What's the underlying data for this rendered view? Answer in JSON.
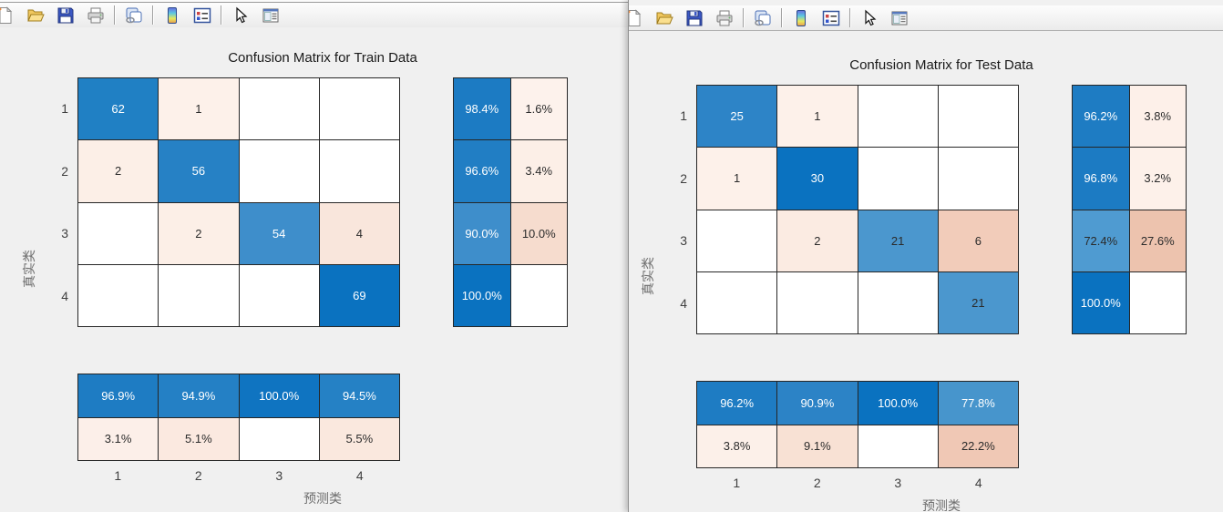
{
  "toolbar": {
    "icons": [
      {
        "name": "new-figure-icon"
      },
      {
        "name": "open-file-icon"
      },
      {
        "name": "save-figure-icon"
      },
      {
        "name": "print-figure-icon"
      },
      {
        "name": "link-plot-icon"
      },
      {
        "name": "insert-colorbar-icon"
      },
      {
        "name": "insert-legend-icon"
      },
      {
        "name": "edit-plot-arrow-icon"
      },
      {
        "name": "property-inspector-icon"
      }
    ]
  },
  "windows": [
    {
      "title": "Confusion Matrix for Train Data",
      "xlabel": "预测类",
      "ylabel": "真实类",
      "row_ticks": [
        "1",
        "2",
        "3",
        "4"
      ],
      "col_ticks": [
        "1",
        "2",
        "3",
        "4"
      ],
      "matrix": [
        [
          {
            "t": "62",
            "bg": "#2080c4",
            "fg": "#ffffff"
          },
          {
            "t": "1",
            "bg": "#fdf1ea"
          },
          {
            "t": "",
            "bg": "#ffffff"
          },
          {
            "t": "",
            "bg": "#ffffff"
          }
        ],
        [
          {
            "t": "2",
            "bg": "#fcefe7"
          },
          {
            "t": "56",
            "bg": "#2681c5",
            "fg": "#ffffff"
          },
          {
            "t": "",
            "bg": "#ffffff"
          },
          {
            "t": "",
            "bg": "#ffffff"
          }
        ],
        [
          {
            "t": "",
            "bg": "#ffffff"
          },
          {
            "t": "2",
            "bg": "#fcefe7"
          },
          {
            "t": "54",
            "bg": "#3e8ecb",
            "fg": "#ffffff"
          },
          {
            "t": "4",
            "bg": "#f9e6dc"
          }
        ],
        [
          {
            "t": "",
            "bg": "#ffffff"
          },
          {
            "t": "",
            "bg": "#ffffff"
          },
          {
            "t": "",
            "bg": "#ffffff"
          },
          {
            "t": "69",
            "bg": "#0a72c0",
            "fg": "#ffffff"
          }
        ]
      ],
      "row_summary": [
        [
          {
            "t": "98.4%",
            "bg": "#1c7bc3",
            "fg": "#ffffff"
          },
          {
            "t": "1.6%",
            "bg": "#fdf2ec"
          }
        ],
        [
          {
            "t": "96.6%",
            "bg": "#217ec4",
            "fg": "#ffffff"
          },
          {
            "t": "3.4%",
            "bg": "#fcefe7"
          }
        ],
        [
          {
            "t": "90.0%",
            "bg": "#3e8ecb",
            "fg": "#ffffff"
          },
          {
            "t": "10.0%",
            "bg": "#f6dcce"
          }
        ],
        [
          {
            "t": "100.0%",
            "bg": "#0a72c0",
            "fg": "#ffffff"
          },
          {
            "t": "",
            "bg": "#ffffff"
          }
        ]
      ],
      "col_summary": [
        [
          {
            "t": "96.9%",
            "bg": "#1e7cc3",
            "fg": "#ffffff"
          },
          {
            "t": "94.9%",
            "bg": "#2480c5",
            "fg": "#ffffff"
          },
          {
            "t": "100.0%",
            "bg": "#0f74c1",
            "fg": "#ffffff"
          },
          {
            "t": "94.5%",
            "bg": "#2581c5",
            "fg": "#ffffff"
          }
        ],
        [
          {
            "t": "3.1%",
            "bg": "#fcefe9"
          },
          {
            "t": "5.1%",
            "bg": "#fbe9e0"
          },
          {
            "t": "",
            "bg": "#ffffff"
          },
          {
            "t": "5.5%",
            "bg": "#fae8de"
          }
        ]
      ]
    },
    {
      "title": "Confusion Matrix for Test Data",
      "xlabel": "预测类",
      "ylabel": "真实类",
      "row_ticks": [
        "1",
        "2",
        "3",
        "4"
      ],
      "col_ticks": [
        "1",
        "2",
        "3",
        "4"
      ],
      "matrix": [
        [
          {
            "t": "25",
            "bg": "#2d84c7",
            "fg": "#ffffff"
          },
          {
            "t": "1",
            "bg": "#fdf1ea"
          },
          {
            "t": "",
            "bg": "#ffffff"
          },
          {
            "t": "",
            "bg": "#ffffff"
          }
        ],
        [
          {
            "t": "1",
            "bg": "#fdf1ea"
          },
          {
            "t": "30",
            "bg": "#0a72c0",
            "fg": "#ffffff"
          },
          {
            "t": "",
            "bg": "#ffffff"
          },
          {
            "t": "",
            "bg": "#ffffff"
          }
        ],
        [
          {
            "t": "",
            "bg": "#ffffff"
          },
          {
            "t": "2",
            "bg": "#fbebe2"
          },
          {
            "t": "21",
            "bg": "#4b97ce"
          },
          {
            "t": "6",
            "bg": "#f2ccba"
          }
        ],
        [
          {
            "t": "",
            "bg": "#ffffff"
          },
          {
            "t": "",
            "bg": "#ffffff"
          },
          {
            "t": "",
            "bg": "#ffffff"
          },
          {
            "t": "21",
            "bg": "#4b97ce"
          }
        ]
      ],
      "row_summary": [
        [
          {
            "t": "96.2%",
            "bg": "#1e7cc3",
            "fg": "#ffffff"
          },
          {
            "t": "3.8%",
            "bg": "#fdf0e9"
          }
        ],
        [
          {
            "t": "96.8%",
            "bg": "#1c7bc3",
            "fg": "#ffffff"
          },
          {
            "t": "3.2%",
            "bg": "#fdf1ea"
          }
        ],
        [
          {
            "t": "72.4%",
            "bg": "#4f9bd1"
          },
          {
            "t": "27.6%",
            "bg": "#edc3ae"
          }
        ],
        [
          {
            "t": "100.0%",
            "bg": "#0a72c0",
            "fg": "#ffffff"
          },
          {
            "t": "",
            "bg": "#ffffff"
          }
        ]
      ],
      "col_summary": [
        [
          {
            "t": "96.2%",
            "bg": "#1e7cc3",
            "fg": "#ffffff"
          },
          {
            "t": "90.9%",
            "bg": "#2c83c6",
            "fg": "#ffffff"
          },
          {
            "t": "100.0%",
            "bg": "#0a72c0",
            "fg": "#ffffff"
          },
          {
            "t": "77.8%",
            "bg": "#4795cc",
            "fg": "#ffffff"
          }
        ],
        [
          {
            "t": "3.8%",
            "bg": "#fcf0e9"
          },
          {
            "t": "9.1%",
            "bg": "#f8e1d4"
          },
          {
            "t": "",
            "bg": "#ffffff"
          },
          {
            "t": "22.2%",
            "bg": "#f0c8b5"
          }
        ]
      ]
    }
  ],
  "chart_data": [
    {
      "type": "heatmap",
      "title": "Confusion Matrix for Train Data",
      "xlabel": "预测类",
      "ylabel": "真实类",
      "classes": [
        "1",
        "2",
        "3",
        "4"
      ],
      "matrix": [
        [
          62,
          1,
          0,
          0
        ],
        [
          2,
          56,
          0,
          0
        ],
        [
          0,
          2,
          54,
          4
        ],
        [
          0,
          0,
          0,
          69
        ]
      ],
      "row_normalized_pct": [
        [
          98.4,
          1.6
        ],
        [
          96.6,
          3.4
        ],
        [
          90.0,
          10.0
        ],
        [
          100.0,
          0
        ]
      ],
      "col_normalized_pct": [
        [
          96.9,
          94.9,
          100.0,
          94.5
        ],
        [
          3.1,
          5.1,
          0,
          5.5
        ]
      ],
      "diagonal_color": "#0a72c0",
      "offdiagonal_color": "#e8977a"
    },
    {
      "type": "heatmap",
      "title": "Confusion Matrix for Test Data",
      "xlabel": "预测类",
      "ylabel": "真实类",
      "classes": [
        "1",
        "2",
        "3",
        "4"
      ],
      "matrix": [
        [
          25,
          1,
          0,
          0
        ],
        [
          1,
          30,
          0,
          0
        ],
        [
          0,
          2,
          21,
          6
        ],
        [
          0,
          0,
          0,
          21
        ]
      ],
      "row_normalized_pct": [
        [
          96.2,
          3.8
        ],
        [
          96.8,
          3.2
        ],
        [
          72.4,
          27.6
        ],
        [
          100.0,
          0
        ]
      ],
      "col_normalized_pct": [
        [
          96.2,
          90.9,
          100.0,
          77.8
        ],
        [
          3.8,
          9.1,
          0,
          22.2
        ]
      ],
      "diagonal_color": "#0a72c0",
      "offdiagonal_color": "#e8977a"
    }
  ]
}
